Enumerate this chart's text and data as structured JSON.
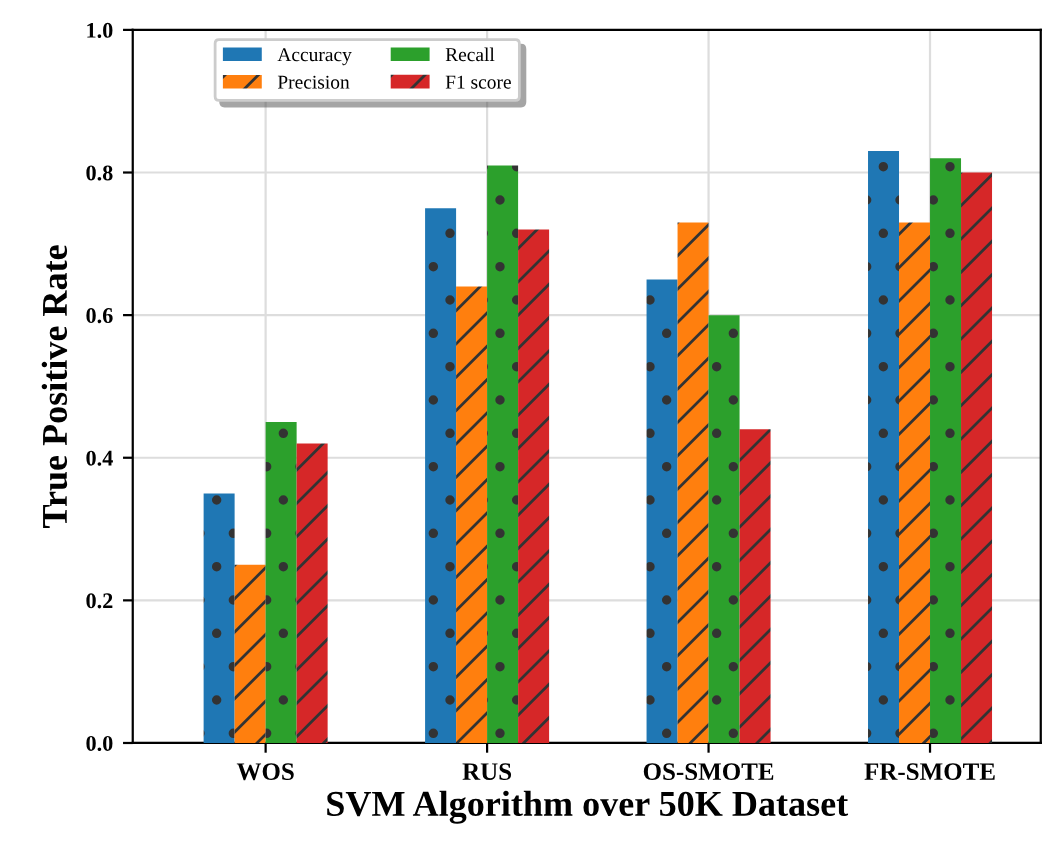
{
  "chart_data": {
    "type": "bar",
    "xlabel": "SVM Algorithm over 50K Dataset",
    "ylabel": "True Positive Rate",
    "categories": [
      "WOS",
      "RUS",
      "OS-SMOTE",
      "FR-SMOTE"
    ],
    "series": [
      {
        "name": "Accuracy",
        "color": "#1f77b4",
        "values": [
          0.35,
          0.75,
          0.65,
          0.83
        ]
      },
      {
        "name": "Precision",
        "color": "#ff7f0e",
        "values": [
          0.25,
          0.64,
          0.73,
          0.73
        ]
      },
      {
        "name": "Recall",
        "color": "#2ca02c",
        "values": [
          0.45,
          0.81,
          0.6,
          0.82
        ]
      },
      {
        "name": "F1 score",
        "color": "#d62728",
        "values": [
          0.42,
          0.72,
          0.44,
          0.8
        ]
      }
    ],
    "ylim": [
      0,
      1.0
    ],
    "yticks": [
      {
        "value": 0,
        "label": "0.0"
      },
      0.2,
      0.4,
      0.6,
      0.8,
      {
        "value": 1.0,
        "label": "1.0"
      }
    ],
    "grid": true,
    "legend": "top left"
  }
}
